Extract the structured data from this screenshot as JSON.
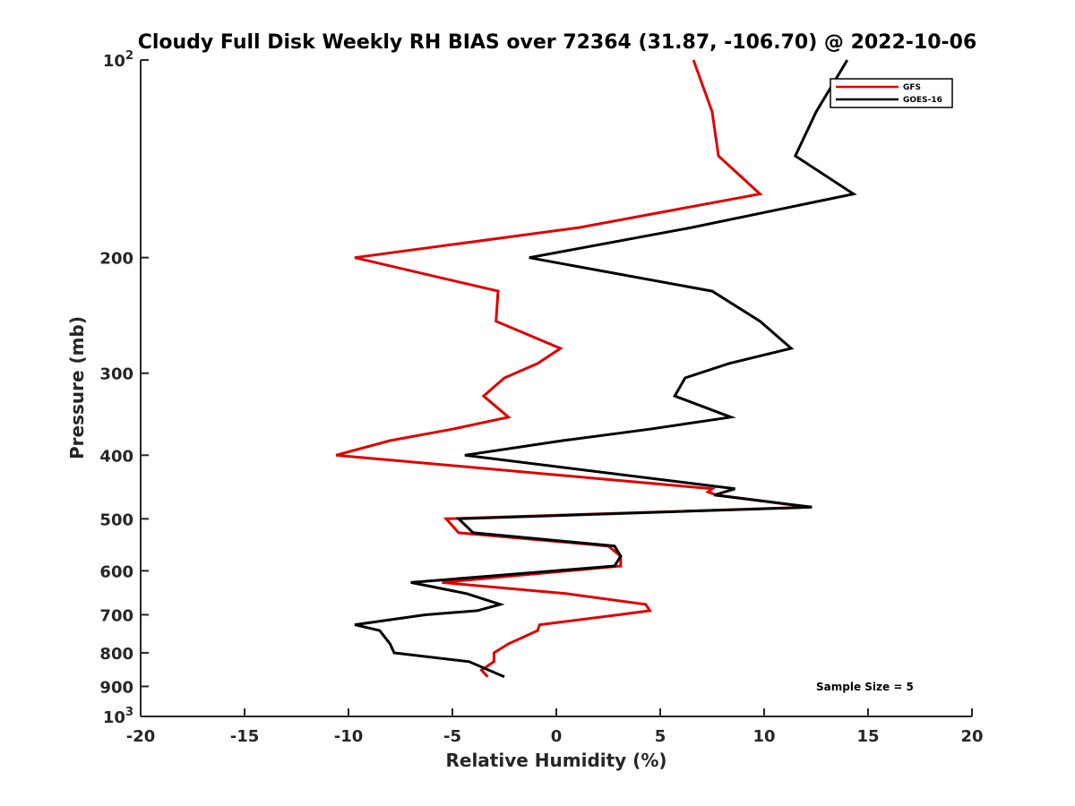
{
  "chart_data": {
    "type": "line",
    "title": "Cloudy Full Disk Weekly RH BIAS over 72364 (31.87, -106.70) @ 2022-10-06",
    "xlabel": "Relative Humidity (%)",
    "ylabel": "Pressure (mb)",
    "xlim": [
      -20,
      20
    ],
    "ylim": [
      1000,
      100
    ],
    "yscale": "log",
    "y_reversed": true,
    "grid": false,
    "legend_position": "top-right",
    "x_ticks": [
      -20,
      -15,
      -10,
      -5,
      0,
      5,
      10,
      15,
      20
    ],
    "x_tick_labels": [
      "-20",
      "-15",
      "-10",
      "-5",
      "0",
      "5",
      "10",
      "15",
      "20"
    ],
    "y_ticks": [
      {
        "value": 100,
        "base": "10",
        "exp": "2"
      },
      {
        "value": 200,
        "label": "200"
      },
      {
        "value": 300,
        "label": "300"
      },
      {
        "value": 400,
        "label": "400"
      },
      {
        "value": 500,
        "label": "500"
      },
      {
        "value": 600,
        "label": "600"
      },
      {
        "value": 700,
        "label": "700"
      },
      {
        "value": 800,
        "label": "800"
      },
      {
        "value": 900,
        "label": "900"
      },
      {
        "value": 1000,
        "base": "10",
        "exp": "3"
      }
    ],
    "annotation": "Sample Size = 5",
    "series": [
      {
        "name": "GFS",
        "color": "#e00000",
        "points": [
          [
            6.6,
            100
          ],
          [
            7.5,
            120
          ],
          [
            7.8,
            140
          ],
          [
            9.8,
            160
          ],
          [
            1.1,
            180
          ],
          [
            -9.7,
            200
          ],
          [
            -2.8,
            225
          ],
          [
            -2.9,
            250
          ],
          [
            0.2,
            275
          ],
          [
            -0.9,
            290
          ],
          [
            -2.5,
            305
          ],
          [
            -3.5,
            325
          ],
          [
            -2.3,
            350
          ],
          [
            -5.0,
            365
          ],
          [
            -8.0,
            380
          ],
          [
            -10.6,
            400
          ],
          [
            7.5,
            450
          ],
          [
            7.3,
            455
          ],
          [
            7.7,
            460
          ],
          [
            12.2,
            480
          ],
          [
            -5.3,
            500
          ],
          [
            -4.7,
            525
          ],
          [
            2.5,
            550
          ],
          [
            3.1,
            570
          ],
          [
            3.1,
            590
          ],
          [
            -5.5,
            625
          ],
          [
            0.5,
            650
          ],
          [
            4.3,
            675
          ],
          [
            4.5,
            690
          ],
          [
            3.0,
            700
          ],
          [
            -0.8,
            725
          ],
          [
            -0.9,
            740
          ],
          [
            -2.3,
            775
          ],
          [
            -3.0,
            800
          ],
          [
            -3.0,
            825
          ],
          [
            -3.6,
            850
          ],
          [
            -3.3,
            870
          ]
        ]
      },
      {
        "name": "GOES-16",
        "color": "#000000",
        "points": [
          [
            14.0,
            100
          ],
          [
            12.5,
            120
          ],
          [
            11.5,
            140
          ],
          [
            14.3,
            160
          ],
          [
            6.5,
            180
          ],
          [
            -1.3,
            200
          ],
          [
            7.5,
            225
          ],
          [
            9.8,
            250
          ],
          [
            11.3,
            275
          ],
          [
            8.3,
            290
          ],
          [
            6.2,
            305
          ],
          [
            5.7,
            325
          ],
          [
            8.4,
            350
          ],
          [
            4.5,
            365
          ],
          [
            0.3,
            380
          ],
          [
            -4.4,
            400
          ],
          [
            8.6,
            450
          ],
          [
            7.6,
            460
          ],
          [
            12.3,
            480
          ],
          [
            -4.7,
            500
          ],
          [
            -4.0,
            525
          ],
          [
            2.8,
            550
          ],
          [
            3.1,
            570
          ],
          [
            2.8,
            590
          ],
          [
            -7.0,
            625
          ],
          [
            -4.3,
            650
          ],
          [
            -2.7,
            675
          ],
          [
            -3.8,
            690
          ],
          [
            -6.3,
            700
          ],
          [
            -9.7,
            725
          ],
          [
            -8.5,
            740
          ],
          [
            -8.0,
            775
          ],
          [
            -7.8,
            800
          ],
          [
            -4.2,
            825
          ],
          [
            -2.5,
            870
          ]
        ]
      }
    ]
  }
}
